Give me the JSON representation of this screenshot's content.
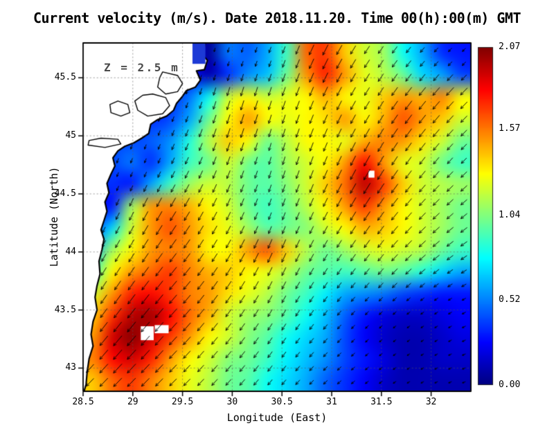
{
  "figure": {
    "title": "Current velocity (m/s). Date 2018.11.20. Time 00(h):00(m) GMT",
    "z_label": "Z = 2.5 m",
    "xlabel": "Longitude (East)",
    "ylabel": "Latitude (North)"
  },
  "chart_data": {
    "type": "heatmap",
    "subtype": "sea-current-speed-shading-with-vector-arrows",
    "title": "Current velocity (m/s). Date 2018.11.20. Time 00(h):00(m) GMT",
    "depth_annotation": "Z = 2.5 m",
    "xlabel": "Longitude (East)",
    "ylabel": "Latitude (North)",
    "x_range": [
      28.5,
      32.4
    ],
    "y_range": [
      42.8,
      45.8
    ],
    "grid_lines": "dotted",
    "x_ticks": [
      {
        "value": 28.5,
        "label": "28.5"
      },
      {
        "value": 29,
        "label": "29"
      },
      {
        "value": 29.5,
        "label": "29.5"
      },
      {
        "value": 30,
        "label": "30"
      },
      {
        "value": 30.5,
        "label": "30.5"
      },
      {
        "value": 31,
        "label": "31"
      },
      {
        "value": 31.5,
        "label": "31.5"
      },
      {
        "value": 32,
        "label": "32"
      }
    ],
    "y_ticks": [
      {
        "value": 43,
        "label": "43"
      },
      {
        "value": 43.5,
        "label": "43.5"
      },
      {
        "value": 44,
        "label": "44"
      },
      {
        "value": 44.5,
        "label": "44.5"
      },
      {
        "value": 45,
        "label": "45"
      },
      {
        "value": 45.5,
        "label": "45.5"
      }
    ],
    "colorbar": {
      "position": "right",
      "colormap": "jet",
      "min": 0.0,
      "max": 2.07,
      "tick_values": [
        2.07,
        1.57,
        1.04,
        0.52,
        0.0
      ],
      "tick_labels": [
        "2.07",
        "1.57",
        "1.04",
        "0.52",
        "0.00"
      ]
    },
    "speed_grid": {
      "units": "m/s",
      "lon_start": 28.5,
      "lon_end": 32.4,
      "lat_start": 45.8,
      "lat_end": 42.8,
      "note": "rows north to south",
      "values": [
        [
          0.3,
          0.3,
          0.3,
          0.3,
          0.3,
          0.3,
          0.05,
          0.5,
          0.45,
          0.6,
          0.9,
          1.6,
          1.7,
          1.4,
          1.2,
          1.1,
          0.8,
          0.6,
          0.35,
          0.3
        ],
        [
          0.3,
          0.3,
          0.3,
          0.3,
          0.3,
          0.3,
          0.1,
          0.35,
          0.55,
          0.65,
          1.0,
          1.5,
          1.75,
          1.5,
          1.25,
          1.15,
          1.0,
          0.7,
          0.6,
          0.4
        ],
        [
          0.3,
          0.3,
          0.3,
          0.3,
          0.35,
          0.5,
          0.8,
          1.2,
          1.3,
          1.2,
          1.25,
          1.3,
          1.45,
          1.3,
          1.25,
          1.4,
          1.5,
          1.45,
          1.55,
          1.3
        ],
        [
          0.35,
          0.35,
          0.35,
          0.35,
          0.4,
          0.6,
          1.0,
          1.3,
          1.5,
          1.3,
          1.25,
          1.3,
          1.35,
          1.5,
          1.3,
          1.45,
          1.65,
          1.5,
          1.4,
          1.2
        ],
        [
          0.4,
          0.4,
          0.4,
          0.45,
          0.55,
          0.85,
          1.15,
          1.4,
          1.3,
          1.0,
          1.15,
          1.3,
          1.3,
          1.25,
          1.45,
          1.55,
          1.5,
          1.35,
          1.2,
          1.0
        ],
        [
          0.4,
          0.4,
          0.5,
          0.35,
          0.6,
          0.9,
          1.0,
          1.2,
          1.0,
          0.95,
          1.1,
          1.2,
          1.3,
          1.5,
          1.8,
          1.5,
          1.25,
          1.2,
          1.0,
          0.9
        ],
        [
          0.35,
          0.35,
          0.3,
          0.6,
          0.9,
          1.1,
          1.2,
          1.15,
          1.0,
          0.95,
          1.05,
          1.2,
          1.4,
          1.6,
          1.95,
          1.7,
          1.4,
          1.2,
          1.15,
          1.1
        ],
        [
          0.3,
          0.3,
          1.1,
          1.5,
          1.55,
          1.45,
          1.3,
          1.2,
          1.0,
          0.9,
          1.0,
          1.15,
          1.3,
          1.5,
          1.7,
          1.5,
          1.3,
          1.2,
          1.1,
          1.0
        ],
        [
          0.4,
          0.7,
          1.2,
          1.5,
          1.65,
          1.5,
          1.35,
          1.25,
          1.1,
          0.95,
          1.0,
          1.05,
          1.2,
          1.3,
          1.45,
          1.4,
          1.3,
          1.2,
          1.1,
          1.0
        ],
        [
          0.6,
          1.1,
          1.3,
          1.5,
          1.55,
          1.5,
          1.3,
          1.3,
          1.5,
          1.65,
          1.4,
          1.15,
          1.0,
          1.1,
          1.2,
          1.25,
          1.2,
          1.15,
          1.0,
          0.9
        ],
        [
          0.9,
          1.3,
          1.5,
          1.6,
          1.7,
          1.55,
          1.45,
          1.4,
          1.3,
          1.25,
          1.15,
          1.0,
          0.95,
          0.9,
          0.95,
          1.0,
          0.95,
          0.85,
          0.7,
          0.6
        ],
        [
          1.2,
          1.5,
          1.75,
          1.8,
          1.7,
          1.55,
          1.5,
          1.35,
          1.25,
          1.15,
          1.0,
          0.9,
          0.75,
          0.6,
          0.55,
          0.5,
          0.4,
          0.35,
          0.3,
          0.3
        ],
        [
          1.4,
          1.7,
          1.95,
          2.0,
          1.8,
          1.6,
          1.45,
          1.2,
          1.1,
          1.05,
          0.95,
          0.8,
          0.65,
          0.45,
          0.3,
          0.2,
          0.15,
          0.15,
          0.2,
          0.25
        ],
        [
          1.5,
          1.9,
          2.05,
          1.9,
          1.7,
          1.5,
          1.3,
          1.2,
          1.05,
          0.95,
          0.8,
          0.7,
          0.6,
          0.4,
          0.25,
          0.15,
          0.1,
          0.1,
          0.15,
          0.2
        ],
        [
          1.55,
          1.8,
          1.9,
          1.75,
          1.5,
          1.3,
          1.2,
          1.05,
          1.0,
          0.9,
          0.75,
          0.65,
          0.55,
          0.4,
          0.3,
          0.2,
          0.1,
          0.1,
          0.15,
          0.15
        ],
        [
          1.4,
          1.6,
          1.7,
          1.55,
          1.4,
          1.25,
          1.15,
          1.0,
          0.95,
          0.8,
          0.7,
          0.6,
          0.45,
          0.35,
          0.25,
          0.15,
          0.1,
          0.1,
          0.1,
          0.1
        ]
      ]
    },
    "direction_grid": {
      "units": "deg_ccw_from_east_toward",
      "lats": [
        45.8,
        44.8,
        43.8,
        42.8
      ],
      "lons": [
        28.5,
        29.475,
        30.45,
        31.425,
        32.4
      ],
      "values": [
        [
          265,
          260,
          250,
          235,
          225
        ],
        [
          255,
          245,
          255,
          240,
          225
        ],
        [
          240,
          230,
          245,
          230,
          210
        ],
        [
          225,
          225,
          230,
          215,
          200
        ]
      ]
    },
    "coastline_lonlat": [
      [
        29.73,
        45.8
      ],
      [
        29.7,
        45.7
      ],
      [
        29.75,
        45.65
      ],
      [
        29.72,
        45.57
      ],
      [
        29.64,
        45.56
      ],
      [
        29.68,
        45.48
      ],
      [
        29.63,
        45.42
      ],
      [
        29.54,
        45.39
      ],
      [
        29.49,
        45.33
      ],
      [
        29.44,
        45.28
      ],
      [
        29.41,
        45.22
      ],
      [
        29.34,
        45.17
      ],
      [
        29.25,
        45.14
      ],
      [
        29.18,
        45.1
      ],
      [
        29.16,
        45.02
      ],
      [
        29.09,
        44.98
      ],
      [
        29.01,
        44.94
      ],
      [
        28.92,
        44.91
      ],
      [
        28.85,
        44.87
      ],
      [
        28.8,
        44.81
      ],
      [
        28.82,
        44.74
      ],
      [
        28.78,
        44.67
      ],
      [
        28.74,
        44.59
      ],
      [
        28.76,
        44.51
      ],
      [
        28.72,
        44.43
      ],
      [
        28.74,
        44.35
      ],
      [
        28.71,
        44.27
      ],
      [
        28.68,
        44.19
      ],
      [
        28.71,
        44.11
      ],
      [
        28.69,
        44.02
      ],
      [
        28.66,
        43.92
      ],
      [
        28.67,
        43.81
      ],
      [
        28.64,
        43.71
      ],
      [
        28.62,
        43.61
      ],
      [
        28.64,
        43.5
      ],
      [
        28.6,
        43.4
      ],
      [
        28.58,
        43.29
      ],
      [
        28.6,
        43.19
      ],
      [
        28.56,
        43.08
      ],
      [
        28.54,
        42.96
      ],
      [
        28.53,
        42.86
      ],
      [
        28.51,
        42.8
      ]
    ],
    "lagoons_lonlat": [
      [
        [
          29.3,
          45.55
        ],
        [
          29.45,
          45.52
        ],
        [
          29.5,
          45.45
        ],
        [
          29.45,
          45.38
        ],
        [
          29.33,
          45.36
        ],
        [
          29.25,
          45.42
        ],
        [
          29.27,
          45.5
        ]
      ],
      [
        [
          29.2,
          45.36
        ],
        [
          29.33,
          45.33
        ],
        [
          29.37,
          45.26
        ],
        [
          29.3,
          45.19
        ],
        [
          29.15,
          45.17
        ],
        [
          29.05,
          45.22
        ],
        [
          29.02,
          45.3
        ],
        [
          29.1,
          45.35
        ]
      ],
      [
        [
          28.85,
          45.3
        ],
        [
          28.95,
          45.27
        ],
        [
          28.97,
          45.2
        ],
        [
          28.88,
          45.17
        ],
        [
          28.78,
          45.2
        ],
        [
          28.77,
          45.27
        ]
      ],
      [
        [
          28.55,
          44.92
        ],
        [
          28.72,
          44.9
        ],
        [
          28.88,
          44.93
        ],
        [
          28.85,
          44.97
        ],
        [
          28.68,
          44.98
        ],
        [
          28.56,
          44.96
        ]
      ]
    ],
    "river_cell": {
      "lon": 29.6,
      "lat_top": 45.8,
      "w": 0.13,
      "h": 0.18,
      "color": "#1d3ad6"
    },
    "missing_data_patches": [
      {
        "lon": 29.08,
        "lat_top": 43.36,
        "w": 0.13,
        "h": 0.12
      },
      {
        "lon": 29.22,
        "lat_top": 43.37,
        "w": 0.14,
        "h": 0.07
      },
      {
        "lon": 31.37,
        "lat_top": 44.7,
        "w": 0.06,
        "h": 0.06
      }
    ],
    "vector_style": {
      "color": "#000000",
      "spacing_px": 20
    }
  }
}
